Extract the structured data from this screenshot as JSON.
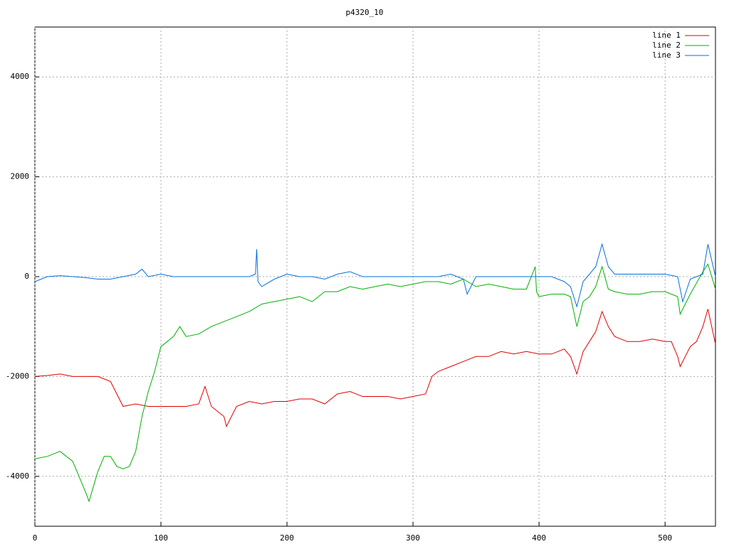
{
  "chart_data": {
    "type": "line",
    "title": "p4320_10",
    "xlim": [
      0,
      540
    ],
    "ylim": [
      -5000,
      5000
    ],
    "xticks": [
      0,
      100,
      200,
      300,
      400,
      500
    ],
    "yticks": [
      -4000,
      -2000,
      0,
      2000,
      4000
    ],
    "grid": true,
    "legend": "top-right",
    "series": [
      {
        "name": "line 1",
        "color": "#e00000",
        "x": [
          0,
          10,
          20,
          30,
          40,
          50,
          60,
          70,
          80,
          90,
          100,
          110,
          120,
          130,
          135,
          140,
          150,
          152,
          160,
          170,
          180,
          190,
          200,
          210,
          220,
          230,
          240,
          250,
          260,
          270,
          280,
          290,
          300,
          310,
          315,
          320,
          330,
          340,
          350,
          360,
          370,
          380,
          390,
          400,
          410,
          420,
          425,
          430,
          435,
          440,
          445,
          450,
          455,
          460,
          470,
          480,
          490,
          500,
          505,
          510,
          512,
          520,
          525,
          530,
          534,
          540
        ],
        "values": [
          -2000,
          -1980,
          -1950,
          -2000,
          -2000,
          -2000,
          -2100,
          -2600,
          -2550,
          -2600,
          -2600,
          -2600,
          -2600,
          -2550,
          -2200,
          -2600,
          -2800,
          -3000,
          -2600,
          -2500,
          -2550,
          -2500,
          -2500,
          -2450,
          -2450,
          -2550,
          -2350,
          -2300,
          -2400,
          -2400,
          -2400,
          -2450,
          -2400,
          -2350,
          -2000,
          -1900,
          -1800,
          -1700,
          -1600,
          -1600,
          -1500,
          -1550,
          -1500,
          -1550,
          -1550,
          -1450,
          -1600,
          -1950,
          -1500,
          -1300,
          -1100,
          -700,
          -1000,
          -1200,
          -1300,
          -1300,
          -1250,
          -1300,
          -1300,
          -1600,
          -1800,
          -1400,
          -1300,
          -1000,
          -650,
          -1350
        ]
      },
      {
        "name": "line 2",
        "color": "#00b000",
        "x": [
          0,
          10,
          20,
          30,
          40,
          43,
          50,
          55,
          60,
          65,
          70,
          75,
          80,
          85,
          90,
          95,
          100,
          105,
          110,
          115,
          120,
          130,
          140,
          150,
          160,
          170,
          180,
          190,
          200,
          210,
          220,
          230,
          240,
          250,
          260,
          270,
          280,
          290,
          300,
          310,
          320,
          330,
          340,
          350,
          360,
          370,
          380,
          390,
          397,
          398,
          400,
          410,
          420,
          425,
          430,
          435,
          440,
          445,
          450,
          455,
          460,
          470,
          480,
          490,
          500,
          510,
          512,
          520,
          530,
          534,
          540
        ],
        "values": [
          -3650,
          -3600,
          -3500,
          -3700,
          -4300,
          -4500,
          -3900,
          -3600,
          -3600,
          -3800,
          -3850,
          -3800,
          -3500,
          -2800,
          -2300,
          -1900,
          -1400,
          -1300,
          -1200,
          -1000,
          -1200,
          -1150,
          -1000,
          -900,
          -800,
          -700,
          -550,
          -500,
          -450,
          -400,
          -500,
          -300,
          -300,
          -200,
          -250,
          -200,
          -150,
          -200,
          -150,
          -100,
          -100,
          -150,
          -50,
          -200,
          -150,
          -200,
          -250,
          -250,
          200,
          -300,
          -400,
          -350,
          -350,
          -400,
          -1000,
          -500,
          -400,
          -200,
          200,
          -250,
          -300,
          -350,
          -350,
          -300,
          -300,
          -400,
          -750,
          -350,
          100,
          250,
          -250
        ]
      },
      {
        "name": "line 3",
        "color": "#0070e0",
        "x": [
          0,
          10,
          20,
          30,
          40,
          50,
          60,
          70,
          80,
          85,
          90,
          100,
          110,
          120,
          130,
          140,
          150,
          160,
          170,
          175,
          176,
          177,
          180,
          190,
          200,
          210,
          220,
          230,
          240,
          250,
          260,
          270,
          280,
          290,
          300,
          310,
          320,
          330,
          340,
          343,
          350,
          360,
          370,
          380,
          390,
          400,
          410,
          420,
          425,
          430,
          435,
          440,
          445,
          450,
          455,
          460,
          470,
          480,
          490,
          500,
          510,
          514,
          520,
          530,
          534,
          540
        ],
        "values": [
          -100,
          0,
          20,
          0,
          -20,
          -50,
          -50,
          0,
          50,
          150,
          0,
          50,
          0,
          0,
          0,
          0,
          0,
          0,
          0,
          50,
          550,
          -100,
          -200,
          -50,
          50,
          0,
          0,
          -50,
          50,
          100,
          0,
          0,
          0,
          0,
          0,
          0,
          0,
          50,
          -50,
          -350,
          0,
          0,
          0,
          0,
          0,
          0,
          0,
          -100,
          -200,
          -600,
          -100,
          50,
          200,
          650,
          200,
          50,
          50,
          50,
          50,
          50,
          0,
          -500,
          -50,
          50,
          650,
          0
        ]
      }
    ]
  }
}
